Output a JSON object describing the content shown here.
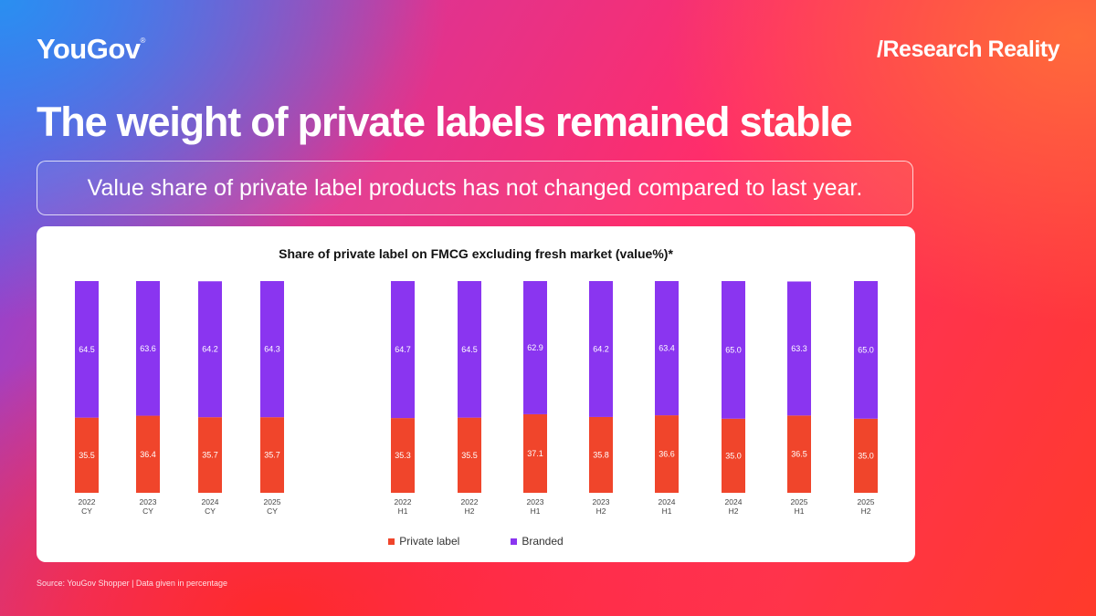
{
  "header": {
    "logo_text": "YouGov",
    "logo_mark": "®",
    "tagline": "/Research Reality"
  },
  "headline": "The weight of private labels remained stable",
  "subtitle": "Value share of private label products has not changed compared to last year.",
  "source": "Source: YouGov Shopper | Data given in percentage",
  "colors": {
    "private_label": "#f0452b",
    "branded": "#8a35f0"
  },
  "chart_data": {
    "type": "bar",
    "stacked": true,
    "title": "Share of private label on  FMCG excluding fresh market (value%)*",
    "categories": [
      [
        "2022",
        "CY"
      ],
      [
        "2023",
        "CY"
      ],
      [
        "2024",
        "CY"
      ],
      [
        "2025",
        "CY"
      ],
      [
        "2022",
        "H1"
      ],
      [
        "2022",
        "H2"
      ],
      [
        "2023",
        "H1"
      ],
      [
        "2023",
        "H2"
      ],
      [
        "2024",
        "H1"
      ],
      [
        "2024",
        "H2"
      ],
      [
        "2025",
        "H1"
      ],
      [
        "2025",
        "H2"
      ]
    ],
    "series": [
      {
        "name": "Private label",
        "values": [
          35.5,
          36.4,
          35.7,
          35.7,
          35.3,
          35.5,
          37.1,
          35.8,
          36.6,
          35.0,
          36.5,
          35.0
        ]
      },
      {
        "name": "Branded",
        "values": [
          64.5,
          63.6,
          64.2,
          64.3,
          64.7,
          64.5,
          62.9,
          64.2,
          63.4,
          65.0,
          63.3,
          65.0
        ]
      }
    ],
    "ylim": [
      0,
      100
    ],
    "grid": false,
    "legend": "bottom",
    "data_labels": true
  }
}
